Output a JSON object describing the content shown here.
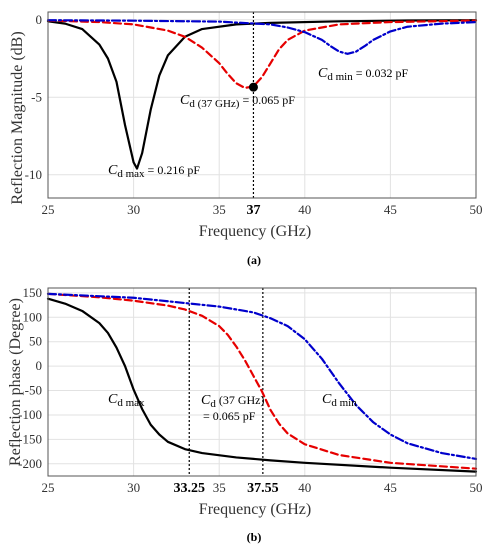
{
  "chart_data": [
    {
      "type": "line",
      "caption": "(a)",
      "xlabel": "Frequency (GHz)",
      "ylabel": "Reflection Magnitude (dB)",
      "xlim": [
        25,
        50
      ],
      "ylim": [
        -11.5,
        0.5
      ],
      "xticks": [
        "25",
        "30",
        "35",
        "37",
        "40",
        "45",
        "50"
      ],
      "xtick_values": [
        25,
        30,
        35,
        37,
        40,
        45,
        50
      ],
      "bold_xticks": [
        "37"
      ],
      "yticks": [
        "0",
        "-5",
        "-10"
      ],
      "ytick_values": [
        0,
        -5,
        -10
      ],
      "grid": true,
      "series": [
        {
          "style": "solid",
          "color": "#000000",
          "x": [
            25,
            26,
            27,
            28,
            28.5,
            29,
            29.5,
            30,
            30.2,
            30.5,
            31,
            31.5,
            32,
            33,
            34,
            36,
            38,
            42,
            46,
            50
          ],
          "y": [
            -0.1,
            -0.25,
            -0.6,
            -1.6,
            -2.5,
            -4.0,
            -6.8,
            -9.2,
            -9.6,
            -8.6,
            -5.8,
            -3.6,
            -2.3,
            -1.1,
            -0.6,
            -0.3,
            -0.2,
            -0.1,
            -0.05,
            -0.03
          ]
        },
        {
          "style": "dashed",
          "color": "#e60000",
          "x": [
            25,
            28,
            30,
            32,
            33,
            34,
            35,
            35.5,
            36,
            36.5,
            37,
            37.5,
            38,
            38.5,
            39,
            40,
            42,
            45,
            50
          ],
          "y": [
            -0.05,
            -0.15,
            -0.3,
            -0.7,
            -1.1,
            -1.8,
            -2.8,
            -3.5,
            -4.1,
            -4.4,
            -4.3,
            -3.7,
            -2.8,
            -1.9,
            -1.3,
            -0.7,
            -0.3,
            -0.15,
            -0.05
          ]
        },
        {
          "style": "dashdot",
          "color": "#0000cc",
          "x": [
            25,
            30,
            35,
            38,
            39,
            40,
            41,
            41.5,
            42,
            42.5,
            43,
            43.5,
            44,
            45,
            46,
            48,
            50
          ],
          "y": [
            -0.03,
            -0.06,
            -0.12,
            -0.3,
            -0.5,
            -0.8,
            -1.3,
            -1.7,
            -2.05,
            -2.2,
            -2.05,
            -1.7,
            -1.3,
            -0.75,
            -0.45,
            -0.25,
            -0.15
          ]
        }
      ],
      "marker": {
        "x": 37,
        "y": -4.35
      },
      "vlines": [
        37
      ],
      "annotations": [
        {
          "sym": "C",
          "sub": "d max",
          "rest": " = 0.216 pF"
        },
        {
          "sym": "C",
          "sub": "d (37 GHz)",
          "rest": " = 0.065 pF"
        },
        {
          "sym": "C",
          "sub": "d min",
          "rest": " = 0.032 pF"
        }
      ]
    },
    {
      "type": "line",
      "caption": "(b)",
      "xlabel": "Frequency (GHz)",
      "ylabel": "Reflection phase (Degree)",
      "xlim": [
        25,
        50
      ],
      "ylim": [
        -225,
        160
      ],
      "xticks": [
        "25",
        "30",
        "33.25",
        "35",
        "37.55",
        "40",
        "45",
        "50"
      ],
      "xtick_values": [
        25,
        30,
        33.25,
        35,
        37.55,
        40,
        45,
        50
      ],
      "bold_xticks": [
        "33.25",
        "37.55"
      ],
      "yticks": [
        "150",
        "100",
        "50",
        "0",
        "-50",
        "-100",
        "-150",
        "-200"
      ],
      "ytick_values": [
        150,
        100,
        50,
        0,
        -50,
        -100,
        -150,
        -200
      ],
      "grid": true,
      "series": [
        {
          "style": "solid",
          "color": "#000000",
          "x": [
            25,
            26,
            27,
            28,
            28.5,
            29,
            29.5,
            30,
            30.5,
            31,
            31.5,
            32,
            33,
            34,
            36,
            38,
            40,
            45,
            50
          ],
          "y": [
            138,
            128,
            113,
            88,
            68,
            38,
            0,
            -48,
            -88,
            -120,
            -140,
            -155,
            -170,
            -178,
            -187,
            -193,
            -198,
            -208,
            -216
          ]
        },
        {
          "style": "dashed",
          "color": "#e60000",
          "x": [
            25,
            28,
            30,
            32,
            33,
            34,
            35,
            35.5,
            36,
            36.5,
            37,
            37.5,
            38,
            38.5,
            39,
            40,
            42,
            45,
            50
          ],
          "y": [
            148,
            141,
            134,
            124,
            116,
            103,
            82,
            64,
            40,
            12,
            -20,
            -52,
            -90,
            -118,
            -138,
            -160,
            -182,
            -198,
            -210
          ]
        },
        {
          "style": "dashdot",
          "color": "#0000cc",
          "x": [
            25,
            30,
            35,
            37,
            38,
            39,
            40,
            41,
            42,
            43,
            44,
            45,
            46,
            48,
            50
          ],
          "y": [
            148,
            140,
            122,
            110,
            98,
            82,
            55,
            15,
            -35,
            -80,
            -115,
            -140,
            -158,
            -178,
            -190
          ]
        }
      ],
      "vlines": [
        33.25,
        37.55
      ],
      "annotations": [
        {
          "sym": "C",
          "sub": "d max",
          "rest": ""
        },
        {
          "sym": "C",
          "sub": "d",
          "rest": " (37 GHz)",
          "line2": "= 0.065 pF"
        },
        {
          "sym": "C",
          "sub": "d min",
          "rest": ""
        }
      ]
    }
  ]
}
